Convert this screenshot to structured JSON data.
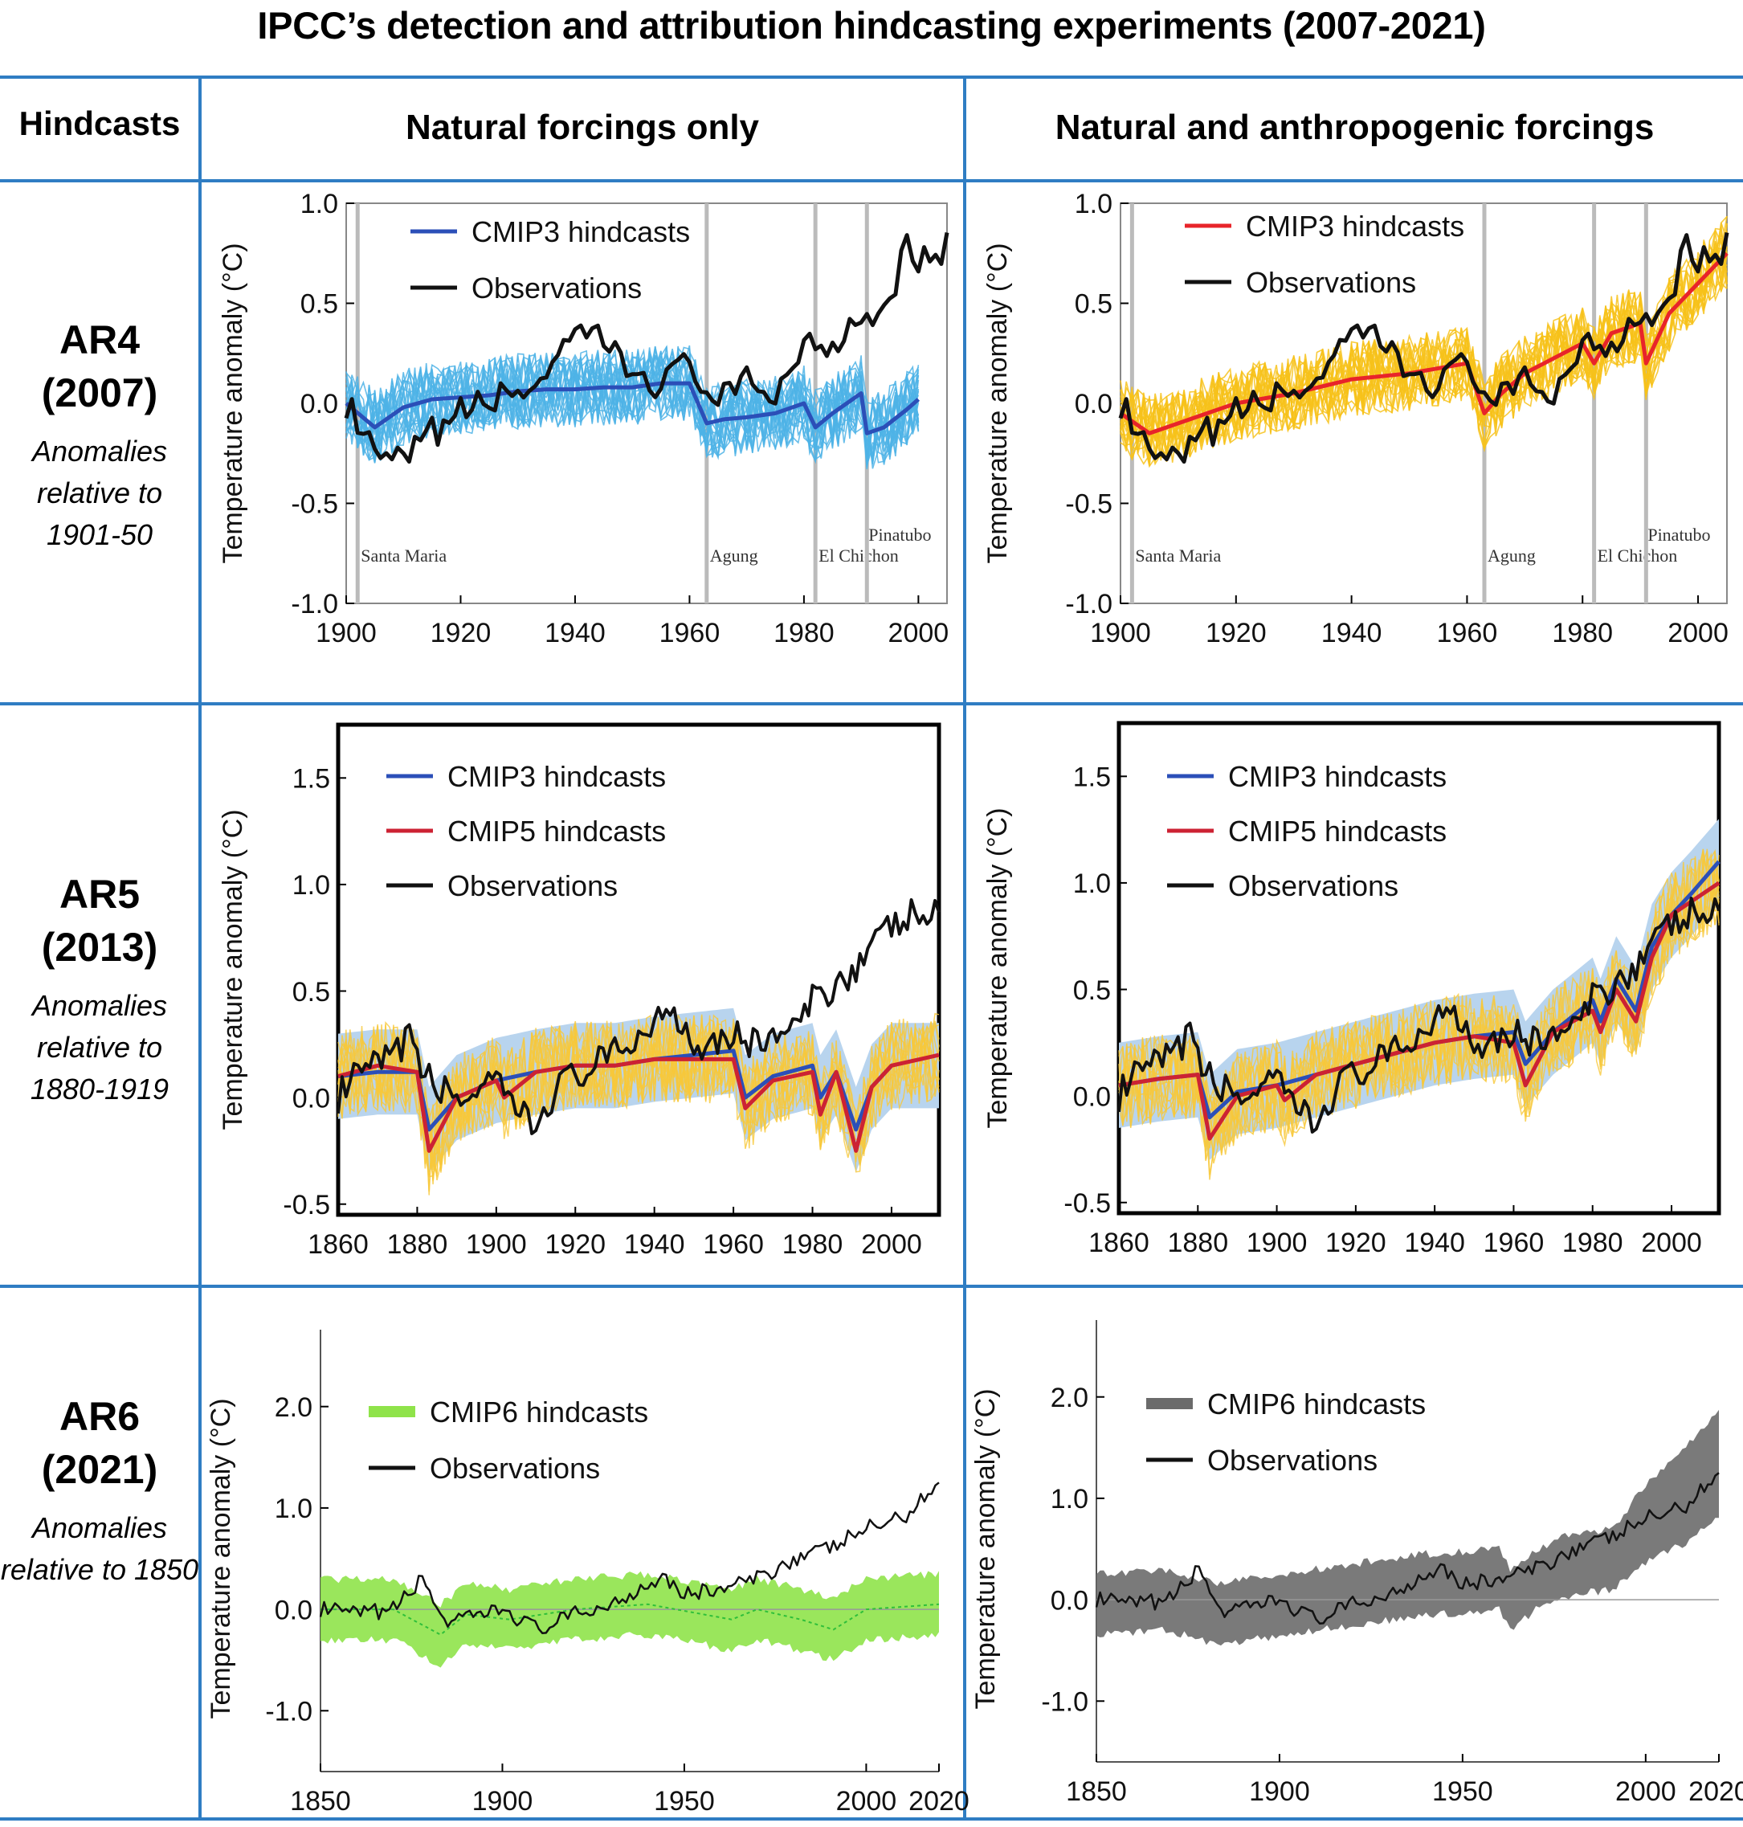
{
  "title": "IPCC’s detection and attribution hindcasting experiments (2007-2021)",
  "header": {
    "row_header": "Hindcasts",
    "col_natural": "Natural forcings only",
    "col_both": "Natural and anthropogenic forcings"
  },
  "rows": [
    {
      "name": "AR4",
      "year": "(2007)",
      "note": "Anomalies relative to 1901-50"
    },
    {
      "name": "AR5",
      "year": "(2013)",
      "note": "Anomalies relative to 1880-1919"
    },
    {
      "name": "AR6",
      "year": "(2021)",
      "note": "Anomalies relative to 1850"
    }
  ],
  "colors": {
    "grid_border": "#2f7dc3",
    "cmip3_blue": "#2b4fb8",
    "cmip3_ensemble": "#4db3e6",
    "cmip3_ensemble_yellow": "#f7c21a",
    "cmip5_red": "#cc2233",
    "ar4_red": "#e8242a",
    "ar5_band": "#b8d4ee",
    "ar5_members": "#f8c83a",
    "cmip6_green": "#8fe34a",
    "cmip6_gray": "#6b6b6b",
    "observations": "#111111"
  },
  "chart_data": [
    {
      "id": "ar4_natural",
      "type": "line",
      "ylabel": "Temperature anomaly (°C)",
      "xlim": [
        1900,
        2005
      ],
      "ylim": [
        -1.0,
        1.0
      ],
      "xticks": [
        "1900",
        "1920",
        "1940",
        "1960",
        "1980",
        "2000"
      ],
      "yticks": [
        "1.0",
        "0.5",
        "0.0",
        "-0.5",
        "-1.0"
      ],
      "legend": [
        "CMIP3 hindcasts",
        "Observations"
      ],
      "volcanoes": [
        {
          "name": "Santa Maria",
          "year": 1902
        },
        {
          "name": "Agung",
          "year": 1963
        },
        {
          "name": "El Chichon",
          "year": 1982
        },
        {
          "name": "Pinatubo",
          "year": 1991
        }
      ],
      "series": [
        {
          "name": "CMIP3 hindcasts",
          "x": [
            1900,
            1905,
            1910,
            1915,
            1920,
            1925,
            1930,
            1935,
            1940,
            1945,
            1950,
            1955,
            1960,
            1963,
            1966,
            1970,
            1975,
            1980,
            1982,
            1985,
            1990,
            1991,
            1994,
            1998,
            2000
          ],
          "values": [
            0.0,
            -0.12,
            -0.02,
            0.02,
            0.03,
            0.04,
            0.06,
            0.07,
            0.07,
            0.08,
            0.08,
            0.1,
            0.1,
            -0.1,
            -0.08,
            -0.07,
            -0.05,
            0.0,
            -0.12,
            -0.05,
            0.05,
            -0.15,
            -0.12,
            -0.03,
            0.02
          ]
        },
        {
          "name": "Observations",
          "x": [
            1900,
            1905,
            1910,
            1915,
            1920,
            1925,
            1930,
            1935,
            1940,
            1944,
            1948,
            1950,
            1955,
            1960,
            1965,
            1970,
            1975,
            1980,
            1985,
            1990,
            1995,
            1998,
            2000,
            2005
          ],
          "values": [
            0.0,
            -0.28,
            -0.3,
            -0.15,
            -0.05,
            0.02,
            0.05,
            0.15,
            0.3,
            0.35,
            0.2,
            0.15,
            0.1,
            0.2,
            0.0,
            0.1,
            0.05,
            0.3,
            0.3,
            0.45,
            0.5,
            0.85,
            0.7,
            0.78
          ]
        }
      ]
    },
    {
      "id": "ar4_both",
      "type": "line",
      "ylabel": "Temperature anomaly (°C)",
      "xlim": [
        1900,
        2005
      ],
      "ylim": [
        -1.0,
        1.0
      ],
      "xticks": [
        "1900",
        "1920",
        "1940",
        "1960",
        "1980",
        "2000"
      ],
      "yticks": [
        "1.0",
        "0.5",
        "0.0",
        "-0.5",
        "-1.0"
      ],
      "legend": [
        "CMIP3 hindcasts",
        "Observations"
      ],
      "volcanoes": [
        {
          "name": "Santa Maria",
          "year": 1902
        },
        {
          "name": "Agung",
          "year": 1963
        },
        {
          "name": "El Chichon",
          "year": 1982
        },
        {
          "name": "Pinatubo",
          "year": 1991
        }
      ],
      "series": [
        {
          "name": "CMIP3 hindcasts",
          "x": [
            1900,
            1905,
            1910,
            1915,
            1920,
            1930,
            1940,
            1950,
            1960,
            1963,
            1966,
            1970,
            1980,
            1982,
            1985,
            1990,
            1991,
            1995,
            2000,
            2005
          ],
          "values": [
            -0.05,
            -0.15,
            -0.1,
            -0.05,
            0.0,
            0.05,
            0.12,
            0.15,
            0.2,
            -0.05,
            0.05,
            0.15,
            0.3,
            0.2,
            0.35,
            0.4,
            0.2,
            0.45,
            0.6,
            0.75
          ]
        },
        {
          "name": "Observations",
          "x": [
            1900,
            1905,
            1910,
            1915,
            1920,
            1925,
            1930,
            1935,
            1940,
            1944,
            1948,
            1950,
            1955,
            1960,
            1965,
            1970,
            1975,
            1980,
            1985,
            1990,
            1995,
            1998,
            2000,
            2005
          ],
          "values": [
            0.0,
            -0.28,
            -0.3,
            -0.15,
            -0.05,
            0.02,
            0.05,
            0.15,
            0.3,
            0.35,
            0.2,
            0.15,
            0.1,
            0.2,
            0.0,
            0.1,
            0.05,
            0.3,
            0.3,
            0.45,
            0.5,
            0.85,
            0.7,
            0.78
          ]
        }
      ]
    },
    {
      "id": "ar5_natural",
      "type": "line",
      "ylabel": "Temperature anomaly (°C)",
      "xlim": [
        1860,
        2012
      ],
      "ylim": [
        -0.55,
        1.75
      ],
      "xticks": [
        "1860",
        "1880",
        "1900",
        "1920",
        "1940",
        "1960",
        "1980",
        "2000"
      ],
      "yticks": [
        "1.5",
        "1.0",
        "0.5",
        "0.0",
        "-0.5"
      ],
      "legend": [
        "CMIP3 hindcasts",
        "CMIP5 hindcasts",
        "Observations"
      ],
      "series": [
        {
          "name": "CMIP3 hindcasts",
          "x": [
            1860,
            1870,
            1880,
            1883,
            1890,
            1900,
            1910,
            1920,
            1930,
            1940,
            1950,
            1960,
            1963,
            1970,
            1980,
            1982,
            1986,
            1991,
            1995,
            2000
          ],
          "values": [
            0.1,
            0.12,
            0.12,
            -0.15,
            0.0,
            0.08,
            0.12,
            0.15,
            0.15,
            0.18,
            0.2,
            0.22,
            0.0,
            0.1,
            0.15,
            0.0,
            0.12,
            -0.15,
            0.05,
            0.15
          ]
        },
        {
          "name": "CMIP5 hindcasts",
          "x": [
            1860,
            1870,
            1880,
            1883,
            1890,
            1900,
            1902,
            1910,
            1920,
            1930,
            1940,
            1950,
            1960,
            1963,
            1970,
            1980,
            1982,
            1986,
            1991,
            1995,
            2000,
            2012
          ],
          "values": [
            0.1,
            0.15,
            0.12,
            -0.25,
            0.0,
            0.08,
            0.0,
            0.12,
            0.15,
            0.15,
            0.18,
            0.18,
            0.18,
            -0.05,
            0.08,
            0.12,
            -0.08,
            0.12,
            -0.25,
            0.05,
            0.15,
            0.2
          ]
        },
        {
          "name": "Observations",
          "x": [
            1860,
            1865,
            1870,
            1875,
            1878,
            1880,
            1885,
            1890,
            1900,
            1905,
            1910,
            1915,
            1920,
            1930,
            1940,
            1944,
            1950,
            1960,
            1965,
            1970,
            1975,
            1980,
            1990,
            2000,
            2005,
            2012
          ],
          "values": [
            0.0,
            0.1,
            0.15,
            0.2,
            0.35,
            0.15,
            0.05,
            0.0,
            0.05,
            -0.05,
            -0.15,
            0.05,
            0.1,
            0.2,
            0.35,
            0.45,
            0.25,
            0.3,
            0.25,
            0.3,
            0.3,
            0.45,
            0.6,
            0.8,
            0.85,
            0.85
          ]
        }
      ]
    },
    {
      "id": "ar5_both",
      "type": "line",
      "ylabel": "Temperature anomaly (°C)",
      "xlim": [
        1860,
        2012
      ],
      "ylim": [
        -0.55,
        1.75
      ],
      "xticks": [
        "1860",
        "1880",
        "1900",
        "1920",
        "1940",
        "1960",
        "1980",
        "2000"
      ],
      "yticks": [
        "1.5",
        "1.0",
        "0.5",
        "0.0",
        "-0.5"
      ],
      "legend": [
        "CMIP3 hindcasts",
        "CMIP5 hindcasts",
        "Observations"
      ],
      "series": [
        {
          "name": "CMIP3 hindcasts",
          "x": [
            1860,
            1870,
            1880,
            1883,
            1890,
            1900,
            1910,
            1920,
            1930,
            1940,
            1950,
            1960,
            1963,
            1970,
            1980,
            1982,
            1986,
            1991,
            1995,
            2000,
            2005,
            2012
          ],
          "values": [
            0.05,
            0.08,
            0.1,
            -0.1,
            0.02,
            0.05,
            0.1,
            0.15,
            0.2,
            0.25,
            0.28,
            0.3,
            0.15,
            0.3,
            0.45,
            0.35,
            0.55,
            0.4,
            0.7,
            0.85,
            0.95,
            1.1
          ]
        },
        {
          "name": "CMIP5 hindcasts",
          "x": [
            1860,
            1870,
            1880,
            1883,
            1890,
            1900,
            1902,
            1910,
            1920,
            1930,
            1940,
            1950,
            1960,
            1963,
            1970,
            1980,
            1982,
            1986,
            1991,
            1995,
            2000,
            2012
          ],
          "values": [
            0.05,
            0.08,
            0.1,
            -0.2,
            0.0,
            0.05,
            -0.02,
            0.1,
            0.15,
            0.2,
            0.25,
            0.28,
            0.25,
            0.05,
            0.3,
            0.4,
            0.3,
            0.5,
            0.35,
            0.65,
            0.85,
            1.0
          ]
        },
        {
          "name": "Observations",
          "x": [
            1860,
            1865,
            1870,
            1875,
            1878,
            1880,
            1885,
            1890,
            1900,
            1905,
            1910,
            1915,
            1920,
            1930,
            1940,
            1944,
            1950,
            1960,
            1965,
            1970,
            1975,
            1980,
            1990,
            2000,
            2005,
            2012
          ],
          "values": [
            0.0,
            0.1,
            0.15,
            0.2,
            0.35,
            0.15,
            0.05,
            0.0,
            0.05,
            -0.05,
            -0.15,
            0.05,
            0.1,
            0.2,
            0.35,
            0.45,
            0.25,
            0.3,
            0.25,
            0.3,
            0.3,
            0.45,
            0.6,
            0.8,
            0.85,
            0.85
          ]
        }
      ]
    },
    {
      "id": "ar6_natural",
      "type": "area",
      "ylabel": "Temperature anomaly (°C)",
      "xlim": [
        1850,
        2020
      ],
      "ylim": [
        -1.6,
        2.6
      ],
      "xticks": [
        "1850",
        "1900",
        "1950",
        "2000",
        "2020"
      ],
      "yticks": [
        "2.0",
        "1.0",
        "0.0",
        "-1.0"
      ],
      "legend": [
        "CMIP6 hindcasts",
        "Observations"
      ],
      "series": [
        {
          "name": "CMIP6 hindcasts",
          "x": [
            1850,
            1870,
            1883,
            1890,
            1902,
            1920,
            1940,
            1963,
            1970,
            1982,
            1991,
            2000,
            2020
          ],
          "values": [
            0.0,
            0.0,
            -0.25,
            -0.05,
            -0.1,
            0.0,
            0.05,
            -0.1,
            0.0,
            -0.1,
            -0.2,
            0.0,
            0.05
          ]
        },
        {
          "name": "Observations",
          "x": [
            1850,
            1860,
            1870,
            1878,
            1885,
            1890,
            1900,
            1910,
            1920,
            1930,
            1940,
            1944,
            1950,
            1960,
            1970,
            1980,
            1990,
            2000,
            2010,
            2020
          ],
          "values": [
            0.0,
            -0.05,
            0.0,
            0.3,
            -0.15,
            -0.1,
            0.0,
            -0.2,
            -0.05,
            0.05,
            0.25,
            0.35,
            0.15,
            0.2,
            0.3,
            0.5,
            0.6,
            0.8,
            0.9,
            1.25
          ]
        }
      ]
    },
    {
      "id": "ar6_both",
      "type": "area",
      "ylabel": "Temperature anomaly (°C)",
      "xlim": [
        1850,
        2020
      ],
      "ylim": [
        -1.6,
        2.6
      ],
      "xticks": [
        "1850",
        "1900",
        "1950",
        "2000",
        "2020"
      ],
      "yticks": [
        "2.0",
        "1.0",
        "0.0",
        "-1.0"
      ],
      "legend": [
        "CMIP6 hindcasts",
        "Observations"
      ],
      "series": [
        {
          "name": "CMIP6 hindcasts",
          "x": [
            1850,
            1870,
            1883,
            1900,
            1920,
            1940,
            1960,
            1963,
            1970,
            1980,
            1991,
            2000,
            2010,
            2020
          ],
          "values": [
            -0.05,
            0.0,
            -0.15,
            -0.05,
            0.05,
            0.15,
            0.2,
            0.0,
            0.2,
            0.35,
            0.4,
            0.75,
            1.0,
            1.35
          ]
        },
        {
          "name": "Observations",
          "x": [
            1850,
            1860,
            1870,
            1878,
            1885,
            1890,
            1900,
            1910,
            1920,
            1930,
            1940,
            1944,
            1950,
            1960,
            1970,
            1980,
            1990,
            2000,
            2010,
            2020
          ],
          "values": [
            0.0,
            -0.05,
            0.0,
            0.3,
            -0.15,
            -0.1,
            0.0,
            -0.2,
            -0.05,
            0.05,
            0.25,
            0.35,
            0.15,
            0.2,
            0.3,
            0.5,
            0.6,
            0.8,
            0.9,
            1.25
          ]
        }
      ]
    }
  ]
}
